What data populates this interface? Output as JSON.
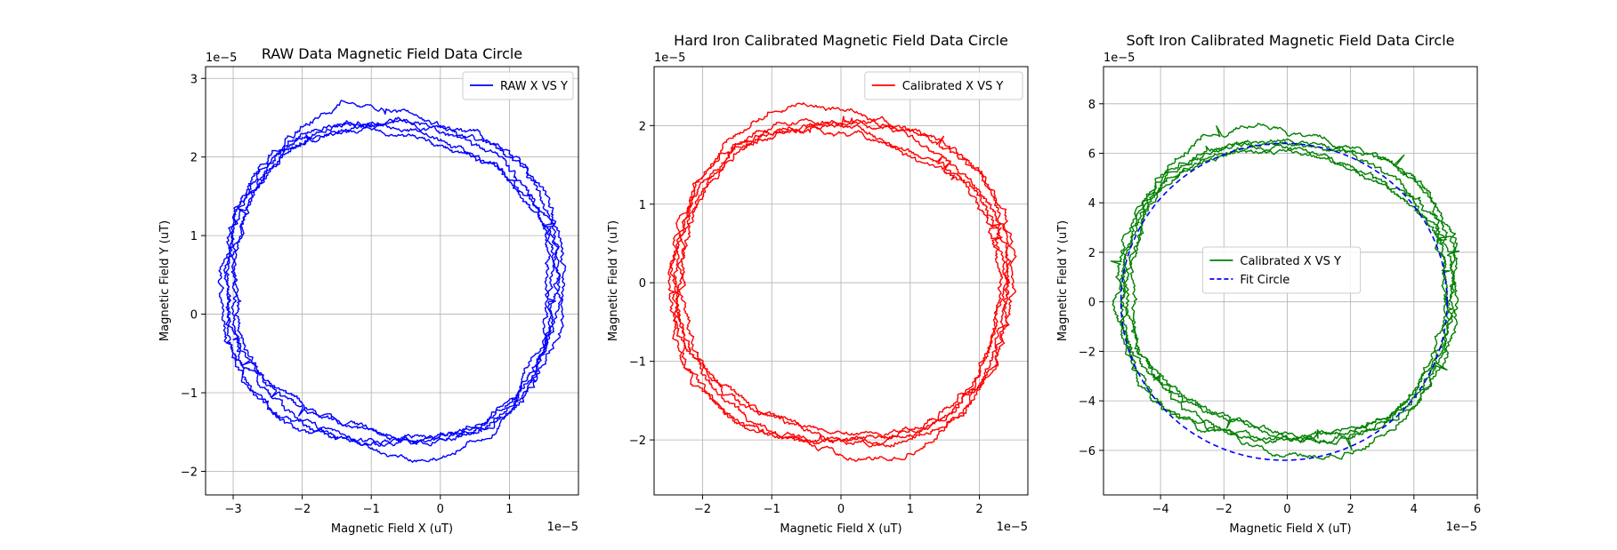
{
  "chart_data": [
    {
      "type": "line",
      "title": "RAW Data Magnetic Field Data Circle",
      "xlabel": "Magnetic Field X (uT)",
      "ylabel": "Magnetic Field Y (uT)",
      "xlim": [
        -3.4,
        2.0
      ],
      "ylim": [
        -2.3,
        3.15
      ],
      "x_ticks": [
        -3,
        -2,
        -1,
        0,
        1
      ],
      "y_ticks": [
        -2,
        -1,
        0,
        1,
        2,
        3
      ],
      "x_offset": "1e−5",
      "y_offset": "1e−5",
      "grid": true,
      "legend_position": "upper right",
      "series": [
        {
          "name": "RAW X VS Y",
          "color": "#0000ff",
          "style": "solid",
          "shape": "noisy-loop",
          "center": [
            -0.7,
            0.4
          ],
          "radius": [
            2.35,
            2.1
          ]
        }
      ]
    },
    {
      "type": "line",
      "title": "Hard Iron Calibrated Magnetic Field Data Circle",
      "xlabel": "Magnetic Field X (uT)",
      "ylabel": "Magnetic Field Y (uT)",
      "xlim": [
        -2.7,
        2.7
      ],
      "ylim": [
        -2.7,
        2.75
      ],
      "x_ticks": [
        -2,
        -1,
        0,
        1,
        2
      ],
      "y_ticks": [
        -2,
        -1,
        0,
        1,
        2
      ],
      "x_offset": "1e−5",
      "y_offset": "1e−5",
      "grid": true,
      "legend_position": "upper right",
      "series": [
        {
          "name": "Calibrated X VS Y",
          "color": "#ff0000",
          "style": "solid",
          "shape": "noisy-loop",
          "center": [
            0.0,
            0.0
          ],
          "radius": [
            2.35,
            2.1
          ]
        }
      ]
    },
    {
      "type": "line",
      "title": "Soft Iron Calibrated Magnetic Field Data Circle",
      "xlabel": "Magnetic Field X (uT)",
      "ylabel": "Magnetic Field Y (uT)",
      "xlim": [
        -5.8,
        6.0
      ],
      "ylim": [
        -7.8,
        9.5
      ],
      "x_ticks": [
        -4,
        -2,
        0,
        2,
        4,
        6
      ],
      "y_ticks": [
        -6,
        -4,
        -2,
        0,
        2,
        4,
        6,
        8
      ],
      "x_offset": "1e−5",
      "y_offset": "1e−5",
      "grid": true,
      "legend_position": "center",
      "series": [
        {
          "name": "Calibrated X VS Y",
          "color": "#008000",
          "style": "solid",
          "shape": "noisy-loop",
          "center": [
            0.0,
            0.4
          ],
          "radius": [
            5.1,
            6.2
          ]
        },
        {
          "name": "Fit Circle",
          "color": "#0000ff",
          "style": "dashed",
          "shape": "ellipse",
          "center": [
            -0.1,
            0.0
          ],
          "radius": [
            5.15,
            6.4
          ]
        }
      ]
    }
  ]
}
